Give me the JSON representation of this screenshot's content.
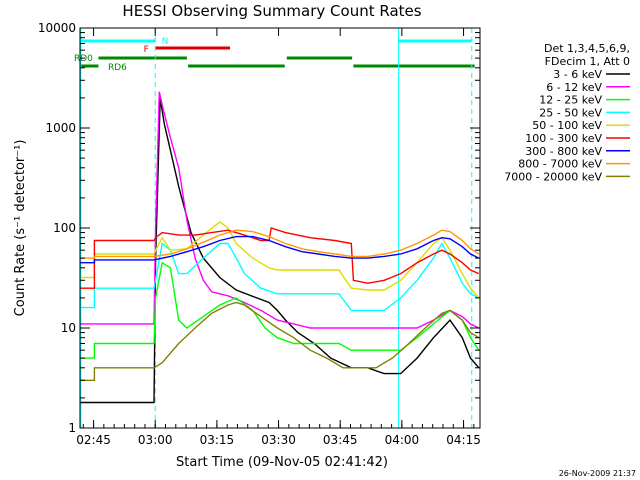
{
  "chart_data": {
    "type": "line",
    "title": "HESSI Observing Summary Count Rates",
    "xlabel": "Start Time (09-Nov-05 02:41:42)",
    "ylabel": "Count Rate (s⁻¹ detector⁻¹)",
    "y_scale": "log",
    "ylim": [
      1,
      10000
    ],
    "xlim": [
      "02:41:42",
      "04:19:00"
    ],
    "x_unit": "minutes after 02:41:42",
    "x_ticks": [
      {
        "label": "02:45",
        "t": 3.3
      },
      {
        "label": "03:00",
        "t": 18.3
      },
      {
        "label": "03:15",
        "t": 33.3
      },
      {
        "label": "03:30",
        "t": 48.3
      },
      {
        "label": "03:45",
        "t": 63.3
      },
      {
        "label": "04:00",
        "t": 78.3
      },
      {
        "label": "04:15",
        "t": 93.3
      }
    ],
    "y_ticks": [
      {
        "label": "1",
        "v": 1
      },
      {
        "label": "10",
        "v": 10
      },
      {
        "label": "100",
        "v": 100
      },
      {
        "label": "1000",
        "v": 1000
      },
      {
        "label": "10000",
        "v": 10000
      }
    ],
    "legend": {
      "placement": "right",
      "header": [
        "Det 1,3,4,5,6,9,",
        "FDecim 1, Att 0"
      ],
      "entries": [
        {
          "label": "3 - 6 keV",
          "color": "#000000"
        },
        {
          "label": "6 - 12 keV",
          "color": "#ff00ff"
        },
        {
          "label": "12 - 25 keV",
          "color": "#00ff00"
        },
        {
          "label": "25 - 50 keV",
          "color": "#00ffff"
        },
        {
          "label": "50 - 100 keV",
          "color": "#dddd00"
        },
        {
          "label": "100 - 300 keV",
          "color": "#ff0000"
        },
        {
          "label": "300 - 800 keV",
          "color": "#0000ff"
        },
        {
          "label": "800 - 7000 keV",
          "color": "#ff9900"
        },
        {
          "label": "7000 - 20000 keV",
          "color": "#808000"
        }
      ]
    },
    "series": [
      {
        "name": "3 - 6 keV",
        "color": "#000000",
        "points": [
          [
            0,
            1.8
          ],
          [
            18,
            1.8
          ],
          [
            18.4,
            50
          ],
          [
            19.5,
            2000
          ],
          [
            20.5,
            1100
          ],
          [
            22,
            600
          ],
          [
            24,
            260
          ],
          [
            27,
            90
          ],
          [
            30,
            50
          ],
          [
            34,
            32
          ],
          [
            38,
            24
          ],
          [
            43,
            20
          ],
          [
            46,
            18
          ],
          [
            48,
            15
          ],
          [
            50,
            12
          ],
          [
            53,
            9
          ],
          [
            57,
            7
          ],
          [
            61,
            5
          ],
          [
            66,
            4
          ],
          [
            70,
            4
          ],
          [
            74,
            3.5
          ],
          [
            78,
            3.5
          ],
          [
            82,
            5
          ],
          [
            86,
            8
          ],
          [
            90,
            12
          ],
          [
            93,
            8
          ],
          [
            95,
            5
          ],
          [
            97,
            4
          ]
        ]
      },
      {
        "name": "6 - 12 keV",
        "color": "#ff00ff",
        "points": [
          [
            0,
            11
          ],
          [
            18,
            11
          ],
          [
            18.4,
            100
          ],
          [
            19.3,
            2300
          ],
          [
            20,
            1700
          ],
          [
            22,
            800
          ],
          [
            24,
            400
          ],
          [
            26,
            120
          ],
          [
            28,
            50
          ],
          [
            30,
            30
          ],
          [
            32,
            23
          ],
          [
            36,
            21
          ],
          [
            40,
            18
          ],
          [
            44,
            15
          ],
          [
            48,
            12
          ],
          [
            52,
            11
          ],
          [
            56,
            10
          ],
          [
            60,
            10
          ],
          [
            65,
            10
          ],
          [
            70,
            10
          ],
          [
            74,
            10
          ],
          [
            78,
            10
          ],
          [
            82,
            10
          ],
          [
            86,
            12
          ],
          [
            90,
            15
          ],
          [
            93,
            13
          ],
          [
            95,
            11
          ],
          [
            97,
            10
          ]
        ]
      },
      {
        "name": "12 - 25 keV",
        "color": "#00ff00",
        "points": [
          [
            0,
            5
          ],
          [
            3.5,
            5
          ],
          [
            3.5,
            7
          ],
          [
            18,
            7
          ],
          [
            18.4,
            20
          ],
          [
            20,
            45
          ],
          [
            22,
            40
          ],
          [
            24,
            12
          ],
          [
            26,
            10
          ],
          [
            30,
            13
          ],
          [
            34,
            17
          ],
          [
            38,
            20
          ],
          [
            42,
            15
          ],
          [
            45,
            10
          ],
          [
            48,
            8
          ],
          [
            52,
            7
          ],
          [
            58,
            7
          ],
          [
            63,
            7
          ],
          [
            66,
            6
          ],
          [
            70,
            6
          ],
          [
            74,
            6
          ],
          [
            78,
            6
          ],
          [
            82,
            8
          ],
          [
            86,
            11
          ],
          [
            90,
            15
          ],
          [
            93,
            12
          ],
          [
            95,
            8
          ],
          [
            97,
            6
          ]
        ]
      },
      {
        "name": "25 - 50 keV",
        "color": "#00ffff",
        "points": [
          [
            0,
            16
          ],
          [
            3.5,
            16
          ],
          [
            3.5,
            25
          ],
          [
            18,
            25
          ],
          [
            18.4,
            30
          ],
          [
            20,
            70
          ],
          [
            22,
            60
          ],
          [
            24,
            35
          ],
          [
            26,
            35
          ],
          [
            30,
            50
          ],
          [
            34,
            70
          ],
          [
            36,
            70
          ],
          [
            38,
            50
          ],
          [
            40,
            35
          ],
          [
            44,
            25
          ],
          [
            48,
            22
          ],
          [
            52,
            22
          ],
          [
            58,
            22
          ],
          [
            63,
            22
          ],
          [
            66,
            15
          ],
          [
            70,
            15
          ],
          [
            74,
            15
          ],
          [
            78,
            20
          ],
          [
            82,
            30
          ],
          [
            86,
            50
          ],
          [
            88,
            70
          ],
          [
            90,
            50
          ],
          [
            93,
            28
          ],
          [
            95,
            22
          ],
          [
            97,
            20
          ]
        ]
      },
      {
        "name": "50 - 100 keV",
        "color": "#dddd00",
        "points": [
          [
            0,
            32
          ],
          [
            3.5,
            32
          ],
          [
            3.5,
            55
          ],
          [
            18,
            55
          ],
          [
            18.4,
            60
          ],
          [
            20,
            80
          ],
          [
            22,
            60
          ],
          [
            26,
            62
          ],
          [
            30,
            85
          ],
          [
            34,
            115
          ],
          [
            36,
            100
          ],
          [
            38,
            70
          ],
          [
            42,
            50
          ],
          [
            46,
            40
          ],
          [
            48,
            38
          ],
          [
            52,
            38
          ],
          [
            58,
            38
          ],
          [
            63,
            38
          ],
          [
            66,
            25
          ],
          [
            70,
            24
          ],
          [
            74,
            24
          ],
          [
            78,
            30
          ],
          [
            82,
            45
          ],
          [
            86,
            70
          ],
          [
            88,
            80
          ],
          [
            90,
            60
          ],
          [
            93,
            35
          ],
          [
            95,
            25
          ],
          [
            97,
            20
          ]
        ]
      },
      {
        "name": "100 - 300 keV",
        "color": "#ff0000",
        "points": [
          [
            0,
            25
          ],
          [
            3.5,
            25
          ],
          [
            3.5,
            75
          ],
          [
            18,
            75
          ],
          [
            18.4,
            80
          ],
          [
            20,
            90
          ],
          [
            24,
            85
          ],
          [
            28,
            85
          ],
          [
            32,
            90
          ],
          [
            36,
            95
          ],
          [
            40,
            85
          ],
          [
            44,
            75
          ],
          [
            46,
            75
          ],
          [
            46.5,
            100
          ],
          [
            50,
            90
          ],
          [
            56,
            80
          ],
          [
            62,
            75
          ],
          [
            66,
            70
          ],
          [
            66.5,
            30
          ],
          [
            70,
            28
          ],
          [
            74,
            30
          ],
          [
            78,
            35
          ],
          [
            82,
            45
          ],
          [
            86,
            55
          ],
          [
            88,
            60
          ],
          [
            90,
            55
          ],
          [
            93,
            45
          ],
          [
            95,
            38
          ],
          [
            97,
            35
          ]
        ]
      },
      {
        "name": "300 - 800 keV",
        "color": "#0000ff",
        "points": [
          [
            0,
            45
          ],
          [
            3.5,
            45
          ],
          [
            3.5,
            48
          ],
          [
            18,
            48
          ],
          [
            22,
            52
          ],
          [
            26,
            58
          ],
          [
            30,
            65
          ],
          [
            34,
            75
          ],
          [
            38,
            82
          ],
          [
            42,
            82
          ],
          [
            46,
            75
          ],
          [
            50,
            65
          ],
          [
            54,
            58
          ],
          [
            58,
            55
          ],
          [
            62,
            52
          ],
          [
            66,
            50
          ],
          [
            70,
            50
          ],
          [
            74,
            52
          ],
          [
            78,
            55
          ],
          [
            82,
            62
          ],
          [
            86,
            75
          ],
          [
            88,
            80
          ],
          [
            90,
            78
          ],
          [
            93,
            65
          ],
          [
            95,
            55
          ],
          [
            97,
            50
          ]
        ]
      },
      {
        "name": "800 - 7000 keV",
        "color": "#ff9900",
        "points": [
          [
            0,
            50
          ],
          [
            3.5,
            50
          ],
          [
            3.5,
            52
          ],
          [
            18,
            52
          ],
          [
            22,
            55
          ],
          [
            26,
            62
          ],
          [
            30,
            72
          ],
          [
            34,
            85
          ],
          [
            38,
            95
          ],
          [
            42,
            92
          ],
          [
            46,
            82
          ],
          [
            50,
            70
          ],
          [
            54,
            62
          ],
          [
            58,
            58
          ],
          [
            62,
            55
          ],
          [
            66,
            52
          ],
          [
            70,
            52
          ],
          [
            74,
            55
          ],
          [
            78,
            60
          ],
          [
            82,
            70
          ],
          [
            86,
            85
          ],
          [
            88,
            95
          ],
          [
            90,
            92
          ],
          [
            93,
            75
          ],
          [
            95,
            62
          ],
          [
            97,
            55
          ]
        ]
      },
      {
        "name": "7000 - 20000 keV",
        "color": "#808000",
        "points": [
          [
            0,
            3
          ],
          [
            3.5,
            3
          ],
          [
            3.5,
            4
          ],
          [
            18,
            4
          ],
          [
            20,
            4.5
          ],
          [
            24,
            7
          ],
          [
            28,
            10
          ],
          [
            32,
            14
          ],
          [
            36,
            17
          ],
          [
            38,
            18
          ],
          [
            40,
            17
          ],
          [
            44,
            13
          ],
          [
            48,
            10
          ],
          [
            52,
            8
          ],
          [
            56,
            6
          ],
          [
            60,
            5
          ],
          [
            64,
            4
          ],
          [
            68,
            4
          ],
          [
            72,
            4
          ],
          [
            76,
            5
          ],
          [
            80,
            7
          ],
          [
            84,
            10
          ],
          [
            88,
            14
          ],
          [
            90,
            15
          ],
          [
            93,
            12
          ],
          [
            95,
            9
          ],
          [
            97,
            8
          ]
        ]
      }
    ],
    "vertical_lines": [
      {
        "t": 18.3,
        "color": "#00ffff",
        "style": "dashed"
      },
      {
        "t": 0.2,
        "color": "#00ffff",
        "style": "solid"
      },
      {
        "t": 77.5,
        "color": "#00ffff",
        "style": "solid"
      },
      {
        "t": 95.3,
        "color": "#00ffff",
        "style": "dashed"
      }
    ],
    "flag_bars": [
      {
        "label": "N",
        "color": "#00ffff",
        "level": 1,
        "segments": [
          [
            0,
            18.4
          ],
          [
            77.5,
            95.2
          ]
        ]
      },
      {
        "label": "F",
        "color": "#dd0000",
        "level": 2,
        "segments": [
          [
            18.4,
            36.5
          ]
        ]
      },
      {
        "label": "RD0",
        "color": "#008800",
        "level": 3,
        "segments": [
          [
            4.5,
            26
          ],
          [
            50.3,
            66.2
          ]
        ]
      },
      {
        "label": "RD6",
        "color": "#008800",
        "level": 4,
        "segments": [
          [
            0,
            4.5
          ],
          [
            26.3,
            49.8
          ],
          [
            66.5,
            96
          ]
        ]
      }
    ]
  },
  "footer_timestamp": "26-Nov-2009 21:37"
}
